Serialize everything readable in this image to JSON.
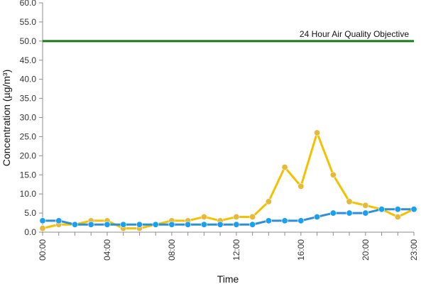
{
  "chart_data": {
    "type": "line",
    "title": "",
    "xlabel": "Time",
    "ylabel": "Concentration (µg/m³)",
    "ylim": [
      0,
      60
    ],
    "ytick_step": 5,
    "ytick_labels": [
      "0.0",
      "5.0",
      "10.0",
      "15.0",
      "20.0",
      "25.0",
      "30.0",
      "35.0",
      "40.0",
      "45.0",
      "50.0",
      "55.0",
      "60.0"
    ],
    "x": [
      "00:00",
      "01:00",
      "02:00",
      "03:00",
      "04:00",
      "05:00",
      "06:00",
      "07:00",
      "08:00",
      "09:00",
      "10:00",
      "11:00",
      "12:00",
      "13:00",
      "14:00",
      "15:00",
      "16:00",
      "17:00",
      "18:00",
      "19:00",
      "20:00",
      "21:00",
      "22:00",
      "23:00"
    ],
    "xtick_labels": [
      {
        "index": 0,
        "label": "00:00"
      },
      {
        "index": 4,
        "label": "04:00"
      },
      {
        "index": 8,
        "label": "08:00"
      },
      {
        "index": 12,
        "label": "12:00"
      },
      {
        "index": 16,
        "label": "16:00"
      },
      {
        "index": 20,
        "label": "20:00"
      },
      {
        "index": 23,
        "label": "23:00"
      }
    ],
    "series": [
      {
        "color": "#f2c200",
        "marker_color": "#e6b93a",
        "values": [
          1,
          2,
          2,
          3,
          3,
          1,
          1,
          2,
          3,
          3,
          4,
          3,
          4,
          4,
          8,
          17,
          12,
          26,
          15,
          8,
          7,
          6,
          4,
          6
        ]
      },
      {
        "color": "#2e8fd8",
        "marker_color": "#1aa0f0",
        "values": [
          3,
          3,
          2,
          2,
          2,
          2,
          2,
          2,
          2,
          2,
          2,
          2,
          2,
          2,
          3,
          3,
          3,
          4,
          5,
          5,
          5,
          6,
          6,
          6
        ]
      }
    ],
    "reference_line": {
      "value": 50,
      "label": "24 Hour Air Quality Objective",
      "color": "#1a7a1a"
    },
    "grid": false,
    "legend": "none"
  }
}
